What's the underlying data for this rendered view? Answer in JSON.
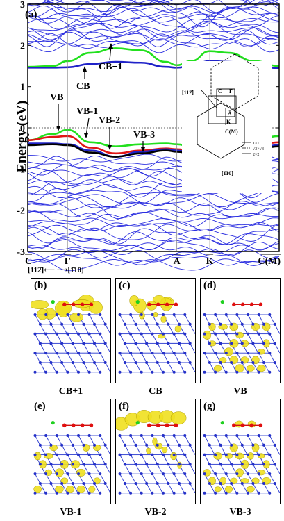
{
  "chart_data": {
    "type": "line",
    "panel_label": "(a)",
    "ylabel": "Energy (eV)",
    "ylim": [
      -3,
      3
    ],
    "yticks": [
      "3",
      "2",
      "1",
      "0",
      "-1",
      "-2",
      "-3"
    ],
    "k_points": [
      {
        "label": "C",
        "bar": true,
        "x": 0.0
      },
      {
        "label": "Γ",
        "bar": true,
        "x": 0.158
      },
      {
        "label": "A",
        "bar": true,
        "x": 0.593
      },
      {
        "label": "K",
        "bar": true,
        "x": 0.724
      },
      {
        "label": "C(M)",
        "bar": true,
        "x": 1.0
      }
    ],
    "direction_label": "[112̄]⟵   ⟶[1̄10]",
    "fermi_level": 0,
    "series": [
      {
        "name": "CB+1",
        "color": "#22e01e",
        "x": [
          0,
          0.1,
          0.158,
          0.25,
          0.35,
          0.45,
          0.55,
          0.593,
          0.65,
          0.724,
          0.8,
          0.9,
          1.0
        ],
        "y": [
          1.48,
          1.5,
          1.62,
          1.82,
          1.93,
          1.88,
          1.6,
          1.52,
          1.62,
          1.86,
          1.82,
          1.62,
          1.5
        ]
      },
      {
        "name": "CB",
        "color": "#1f22c8",
        "x": [
          0,
          0.1,
          0.158,
          0.25,
          0.35,
          0.45,
          0.55,
          0.593,
          0.65,
          0.724,
          0.8,
          0.9,
          1.0
        ],
        "y": [
          1.46,
          1.46,
          1.47,
          1.55,
          1.6,
          1.58,
          1.48,
          1.46,
          1.5,
          1.62,
          1.6,
          1.5,
          1.45
        ]
      },
      {
        "name": "VB",
        "color": "#22e01e",
        "x": [
          0,
          0.1,
          0.158,
          0.25,
          0.35,
          0.45,
          0.55,
          0.593,
          0.65,
          0.724,
          0.8,
          0.9,
          1.0
        ],
        "y": [
          -0.3,
          -0.15,
          -0.05,
          -0.35,
          -0.45,
          -0.4,
          -0.38,
          -0.4,
          -0.45,
          -0.5,
          -0.4,
          -0.3,
          -0.2
        ]
      },
      {
        "name": "VB-1",
        "color": "#e01616",
        "x": [
          0,
          0.1,
          0.158,
          0.25,
          0.35,
          0.45,
          0.55,
          0.593,
          0.65,
          0.724,
          0.8,
          0.9,
          1.0
        ],
        "y": [
          -0.3,
          -0.22,
          -0.2,
          -0.48,
          -0.62,
          -0.55,
          -0.5,
          -0.52,
          -0.55,
          -0.6,
          -0.55,
          -0.45,
          -0.35
        ]
      },
      {
        "name": "VB-2",
        "color": "#1f22c8",
        "x": [
          0,
          0.1,
          0.158,
          0.25,
          0.35,
          0.45,
          0.55,
          0.593,
          0.65,
          0.724,
          0.8,
          0.9,
          1.0
        ],
        "y": [
          -0.38,
          -0.38,
          -0.4,
          -0.55,
          -0.7,
          -0.58,
          -0.52,
          -0.55,
          -0.6,
          -0.65,
          -0.6,
          -0.5,
          -0.42
        ]
      },
      {
        "name": "VB-3",
        "color": "#000000",
        "x": [
          0,
          0.1,
          0.158,
          0.25,
          0.35,
          0.45,
          0.55,
          0.593,
          0.65,
          0.724,
          0.8,
          0.9,
          1.0
        ],
        "y": [
          -0.42,
          -0.4,
          -0.42,
          -0.6,
          -0.7,
          -0.62,
          -0.55,
          -0.58,
          -0.62,
          -0.68,
          -0.65,
          -0.55,
          -0.45
        ]
      }
    ],
    "annotations": [
      {
        "text": "CB+1"
      },
      {
        "text": "CB"
      },
      {
        "text": "VB"
      },
      {
        "text": "VB-1"
      },
      {
        "text": "VB-2"
      },
      {
        "text": "VB-3"
      }
    ],
    "inset": {
      "labels": [
        "[112̄]",
        "K",
        "Ā",
        "C(M)",
        "[1̄10]",
        "Γ",
        "C",
        "1×1",
        "√3×√3",
        "2×2"
      ]
    }
  },
  "panels": [
    {
      "label": "(b)",
      "caption": "CB+1"
    },
    {
      "label": "(c)",
      "caption": "CB"
    },
    {
      "label": "(d)",
      "caption": "VB"
    },
    {
      "label": "(e)",
      "caption": "VB-1"
    },
    {
      "label": "(f)",
      "caption": "VB-2"
    },
    {
      "label": "(g)",
      "caption": "VB-3"
    }
  ]
}
